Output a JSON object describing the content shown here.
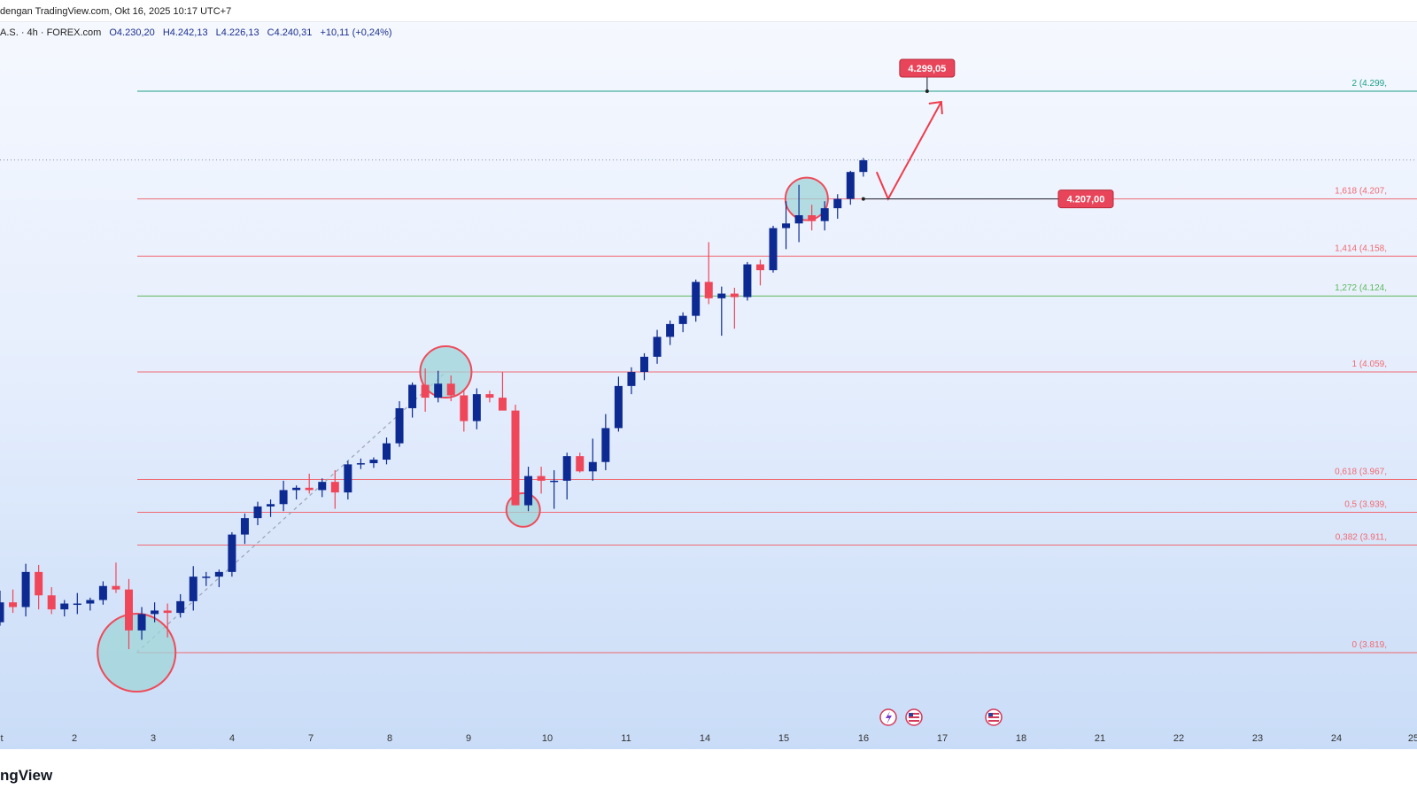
{
  "header": {
    "caption": "dengan TradingView.com, Okt 16, 2025 10:17 UTC+7"
  },
  "ohlc": {
    "symbol": "A.S. · 4h · FOREX.com",
    "open": "O4.230,20",
    "high": "H4.242,13",
    "low": "L4.226,13",
    "close": "C4.240,31",
    "change": "+10,11 (+0,24%)"
  },
  "footer": {
    "brand": "ngView"
  },
  "colors": {
    "bull": "#0d2a93",
    "bear": "#f0465a",
    "fib_red": "#f06a72",
    "fib_green": "#5cb85c",
    "fib_teal": "#1fa08a",
    "circle_fill": "#9fd4d8",
    "circle_stroke": "#ee4b5a",
    "label_bg": "#e8455a"
  },
  "chart_data": {
    "type": "candlestick",
    "x_tick_labels": [
      "t",
      "2",
      "3",
      "4",
      "7",
      "8",
      "9",
      "10",
      "11",
      "14",
      "15",
      "16",
      "17",
      "18",
      "21",
      "22",
      "23",
      "24",
      "25"
    ],
    "y_range": [
      3770,
      4340
    ],
    "current_price": 4240.31,
    "fib_levels": [
      {
        "ratio": "2",
        "label": "2 (4.299,",
        "price": 4299.05,
        "color": "teal"
      },
      {
        "ratio": "1,618",
        "label": "1,618 (4.207,",
        "price": 4207.0,
        "color": "red"
      },
      {
        "ratio": "1,414",
        "label": "1,414 (4.158,",
        "price": 4158.0,
        "color": "red"
      },
      {
        "ratio": "1,272",
        "label": "1,272 (4.124,",
        "price": 4124.0,
        "color": "green"
      },
      {
        "ratio": "1",
        "label": "1 (4.059,",
        "price": 4059.0,
        "color": "red"
      },
      {
        "ratio": "0,618",
        "label": "0,618 (3.967,",
        "price": 3967.0,
        "color": "red"
      },
      {
        "ratio": "0,5",
        "label": "0,5 (3.939,",
        "price": 3939.0,
        "color": "red"
      },
      {
        "ratio": "0,382",
        "label": "0,382 (3.911,",
        "price": 3911.0,
        "color": "red"
      },
      {
        "ratio": "0",
        "label": "0 (3.819,",
        "price": 3819.0,
        "color": "red"
      }
    ],
    "price_labels": [
      {
        "text": "4.299,05",
        "price": 4299.05
      },
      {
        "text": "4.207,00",
        "price": 4207.0
      }
    ],
    "candles": [
      {
        "o": 3845,
        "h": 3872,
        "l": 3842,
        "c": 3862
      },
      {
        "o": 3862,
        "h": 3873,
        "l": 3853,
        "c": 3858
      },
      {
        "o": 3858,
        "h": 3895,
        "l": 3850,
        "c": 3888
      },
      {
        "o": 3888,
        "h": 3894,
        "l": 3856,
        "c": 3868
      },
      {
        "o": 3868,
        "h": 3875,
        "l": 3852,
        "c": 3856
      },
      {
        "o": 3856,
        "h": 3864,
        "l": 3850,
        "c": 3861
      },
      {
        "o": 3861,
        "h": 3870,
        "l": 3852,
        "c": 3861
      },
      {
        "o": 3861,
        "h": 3866,
        "l": 3855,
        "c": 3864
      },
      {
        "o": 3864,
        "h": 3880,
        "l": 3860,
        "c": 3876
      },
      {
        "o": 3876,
        "h": 3896,
        "l": 3870,
        "c": 3873
      },
      {
        "o": 3873,
        "h": 3882,
        "l": 3822,
        "c": 3838
      },
      {
        "o": 3838,
        "h": 3858,
        "l": 3830,
        "c": 3852
      },
      {
        "o": 3852,
        "h": 3862,
        "l": 3845,
        "c": 3855
      },
      {
        "o": 3855,
        "h": 3861,
        "l": 3832,
        "c": 3853
      },
      {
        "o": 3853,
        "h": 3869,
        "l": 3849,
        "c": 3863
      },
      {
        "o": 3863,
        "h": 3893,
        "l": 3855,
        "c": 3884
      },
      {
        "o": 3884,
        "h": 3888,
        "l": 3876,
        "c": 3884
      },
      {
        "o": 3884,
        "h": 3890,
        "l": 3875,
        "c": 3888
      },
      {
        "o": 3888,
        "h": 3922,
        "l": 3884,
        "c": 3920
      },
      {
        "o": 3920,
        "h": 3938,
        "l": 3912,
        "c": 3934
      },
      {
        "o": 3934,
        "h": 3948,
        "l": 3928,
        "c": 3944
      },
      {
        "o": 3944,
        "h": 3950,
        "l": 3935,
        "c": 3946
      },
      {
        "o": 3946,
        "h": 3966,
        "l": 3940,
        "c": 3958
      },
      {
        "o": 3958,
        "h": 3962,
        "l": 3950,
        "c": 3960
      },
      {
        "o": 3960,
        "h": 3972,
        "l": 3955,
        "c": 3958
      },
      {
        "o": 3958,
        "h": 3968,
        "l": 3952,
        "c": 3965
      },
      {
        "o": 3965,
        "h": 3975,
        "l": 3942,
        "c": 3956
      },
      {
        "o": 3956,
        "h": 3983,
        "l": 3950,
        "c": 3980
      },
      {
        "o": 3980,
        "h": 3985,
        "l": 3976,
        "c": 3981
      },
      {
        "o": 3981,
        "h": 3986,
        "l": 3977,
        "c": 3984
      },
      {
        "o": 3984,
        "h": 4003,
        "l": 3980,
        "c": 3998
      },
      {
        "o": 3998,
        "h": 4034,
        "l": 3995,
        "c": 4028
      },
      {
        "o": 4028,
        "h": 4050,
        "l": 4020,
        "c": 4048
      },
      {
        "o": 4048,
        "h": 4062,
        "l": 4025,
        "c": 4037
      },
      {
        "o": 4037,
        "h": 4060,
        "l": 4033,
        "c": 4049
      },
      {
        "o": 4049,
        "h": 4056,
        "l": 4034,
        "c": 4039
      },
      {
        "o": 4039,
        "h": 4043,
        "l": 4008,
        "c": 4017
      },
      {
        "o": 4017,
        "h": 4045,
        "l": 4010,
        "c": 4040
      },
      {
        "o": 4040,
        "h": 4043,
        "l": 4033,
        "c": 4037
      },
      {
        "o": 4037,
        "h": 4059,
        "l": 4027,
        "c": 4026
      },
      {
        "o": 4026,
        "h": 4031,
        "l": 3945,
        "c": 3945
      },
      {
        "o": 3945,
        "h": 3978,
        "l": 3940,
        "c": 3970
      },
      {
        "o": 3970,
        "h": 3978,
        "l": 3955,
        "c": 3966
      },
      {
        "o": 3966,
        "h": 3975,
        "l": 3942,
        "c": 3966
      },
      {
        "o": 3966,
        "h": 3990,
        "l": 3950,
        "c": 3987
      },
      {
        "o": 3987,
        "h": 3990,
        "l": 3973,
        "c": 3974
      },
      {
        "o": 3974,
        "h": 4002,
        "l": 3966,
        "c": 3982
      },
      {
        "o": 3982,
        "h": 4023,
        "l": 3975,
        "c": 4011
      },
      {
        "o": 4011,
        "h": 4055,
        "l": 4008,
        "c": 4047
      },
      {
        "o": 4047,
        "h": 4063,
        "l": 4040,
        "c": 4059
      },
      {
        "o": 4059,
        "h": 4075,
        "l": 4052,
        "c": 4072
      },
      {
        "o": 4072,
        "h": 4095,
        "l": 4066,
        "c": 4089
      },
      {
        "o": 4089,
        "h": 4103,
        "l": 4082,
        "c": 4100
      },
      {
        "o": 4100,
        "h": 4110,
        "l": 4093,
        "c": 4107
      },
      {
        "o": 4107,
        "h": 4138,
        "l": 4102,
        "c": 4136
      },
      {
        "o": 4136,
        "h": 4170,
        "l": 4117,
        "c": 4122
      },
      {
        "o": 4122,
        "h": 4132,
        "l": 4090,
        "c": 4126
      },
      {
        "o": 4126,
        "h": 4131,
        "l": 4096,
        "c": 4123
      },
      {
        "o": 4123,
        "h": 4153,
        "l": 4120,
        "c": 4151
      },
      {
        "o": 4151,
        "h": 4155,
        "l": 4133,
        "c": 4146
      },
      {
        "o": 4146,
        "h": 4184,
        "l": 4144,
        "c": 4182
      },
      {
        "o": 4182,
        "h": 4205,
        "l": 4164,
        "c": 4186
      },
      {
        "o": 4186,
        "h": 4219,
        "l": 4170,
        "c": 4193
      },
      {
        "o": 4193,
        "h": 4202,
        "l": 4180,
        "c": 4188
      },
      {
        "o": 4188,
        "h": 4205,
        "l": 4180,
        "c": 4199
      },
      {
        "o": 4199,
        "h": 4211,
        "l": 4190,
        "c": 4207
      },
      {
        "o": 4207,
        "h": 4231,
        "l": 4202,
        "c": 4230
      },
      {
        "o": 4230,
        "h": 4242,
        "l": 4226,
        "c": 4240
      }
    ],
    "projection": {
      "dip_to": 4207.0,
      "target": 4299.05
    },
    "event_markers": [
      "lightning-icon",
      "us-flag-icon",
      "us-flag-icon"
    ]
  }
}
